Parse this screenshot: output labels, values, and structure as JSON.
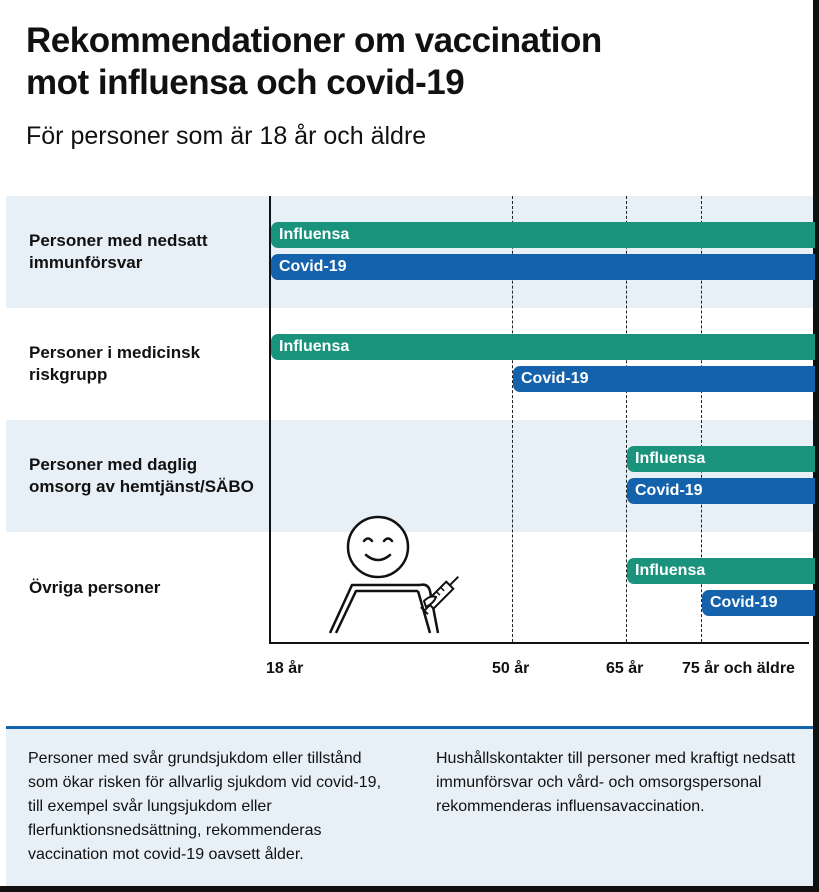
{
  "header": {
    "title_line1": "Rekommendationer om vaccination",
    "title_line2": "mot influensa och covid-19",
    "subtitle": "För personer som är 18 år och äldre"
  },
  "colors": {
    "influensa": "#1a937d",
    "covid": "#1462ab",
    "band_light": "#e6f0f6"
  },
  "chart_data": {
    "type": "bar",
    "x_ticks": [
      "18 år",
      "50 år",
      "65 år",
      "75 år och äldre"
    ],
    "groups": [
      {
        "label": "Personer med nedsatt immunförsvar",
        "bars": [
          {
            "name": "Influensa",
            "from": "18 år"
          },
          {
            "name": "Covid-19",
            "from": "18 år"
          }
        ]
      },
      {
        "label": "Personer i medicinsk riskgrupp",
        "bars": [
          {
            "name": "Influensa",
            "from": "18 år"
          },
          {
            "name": "Covid-19",
            "from": "50 år"
          }
        ]
      },
      {
        "label": "Personer med daglig omsorg av hemtjänst/SÄBO",
        "bars": [
          {
            "name": "Influensa",
            "from": "65 år"
          },
          {
            "name": "Covid-19",
            "from": "65 år"
          }
        ]
      },
      {
        "label": "Övriga personer",
        "bars": [
          {
            "name": "Influensa",
            "from": "65 år"
          },
          {
            "name": "Covid-19",
            "from": "75 år och äldre"
          }
        ]
      }
    ]
  },
  "footer": {
    "left": "Personer med svår grundsjukdom eller tillstånd som ökar risken för allvarlig sjukdom vid covid-19, till exempel svår lungsjukdom eller flerfunktionsnedsättning, rekommenderas vaccination mot covid-19 oavsett ålder.",
    "right": "Hushållskontakter till personer med kraftigt nedsatt immunförsvar och vård- och omsorgspersonal rekommenderas influensavaccination."
  }
}
